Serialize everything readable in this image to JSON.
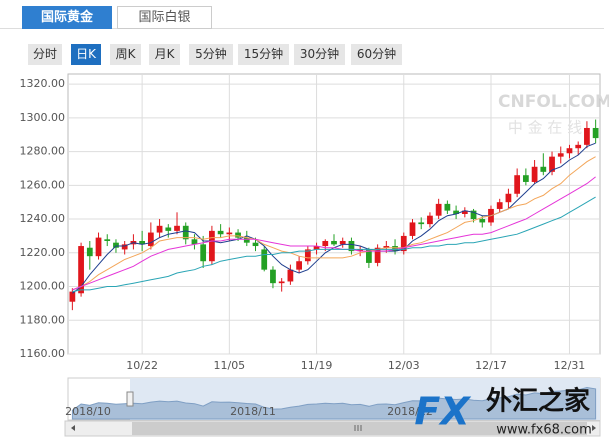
{
  "chart_data": {
    "type": "candlestick",
    "tabs": [
      "国际黄金",
      "国际白银"
    ],
    "active_tab": 0,
    "periods": [
      "分时",
      "日K",
      "周K",
      "月K",
      "5分钟",
      "15分钟",
      "30分钟",
      "60分钟"
    ],
    "active_period": 1,
    "up_color": "#e0161c",
    "down_color": "#23a024",
    "categories": [
      null,
      null,
      null,
      null,
      null,
      null,
      null,
      null,
      "10/22",
      null,
      null,
      null,
      null,
      null,
      null,
      null,
      null,
      null,
      "11/05",
      null,
      null,
      null,
      null,
      null,
      null,
      null,
      null,
      null,
      "11/19",
      null,
      null,
      null,
      null,
      null,
      null,
      null,
      null,
      null,
      "12/03",
      null,
      null,
      null,
      null,
      null,
      null,
      null,
      null,
      null,
      "12/17",
      null,
      null,
      null,
      null,
      null,
      null,
      null,
      null,
      "12/31",
      null,
      null,
      null
    ],
    "ohlc": [
      [
        1191,
        1199,
        1186,
        1197
      ],
      [
        1196,
        1226,
        1194,
        1224
      ],
      [
        1223,
        1227,
        1210,
        1218
      ],
      [
        1218,
        1232,
        1216,
        1229
      ],
      [
        1228,
        1231,
        1224,
        1227
      ],
      [
        1226,
        1228,
        1220,
        1223
      ],
      [
        1222,
        1227,
        1219,
        1225
      ],
      [
        1225,
        1231,
        1222,
        1227
      ],
      [
        1227,
        1233,
        1221,
        1225
      ],
      [
        1224,
        1238,
        1222,
        1232
      ],
      [
        1232,
        1240,
        1229,
        1236
      ],
      [
        1235,
        1237,
        1229,
        1233
      ],
      [
        1233,
        1244,
        1231,
        1236
      ],
      [
        1236,
        1238,
        1225,
        1228
      ],
      [
        1228,
        1231,
        1222,
        1225
      ],
      [
        1225,
        1230,
        1211,
        1215
      ],
      [
        1215,
        1236,
        1213,
        1233
      ],
      [
        1233,
        1237,
        1229,
        1231
      ],
      [
        1231,
        1235,
        1227,
        1232
      ],
      [
        1232,
        1234,
        1227,
        1229
      ],
      [
        1229,
        1233,
        1224,
        1226
      ],
      [
        1226,
        1229,
        1221,
        1224
      ],
      [
        1222,
        1224,
        1209,
        1210
      ],
      [
        1210,
        1212,
        1199,
        1202
      ],
      [
        1202,
        1205,
        1197,
        1203
      ],
      [
        1203,
        1213,
        1201,
        1210
      ],
      [
        1210,
        1218,
        1208,
        1215
      ],
      [
        1215,
        1224,
        1213,
        1222
      ],
      [
        1222,
        1226,
        1219,
        1224
      ],
      [
        1224,
        1228,
        1221,
        1227
      ],
      [
        1227,
        1231,
        1224,
        1225
      ],
      [
        1225,
        1229,
        1223,
        1227
      ],
      [
        1227,
        1229,
        1219,
        1221
      ],
      [
        1221,
        1224,
        1218,
        1222
      ],
      [
        1222,
        1223,
        1211,
        1214
      ],
      [
        1214,
        1225,
        1212,
        1223
      ],
      [
        1223,
        1227,
        1220,
        1224
      ],
      [
        1224,
        1228,
        1219,
        1221
      ],
      [
        1221,
        1232,
        1219,
        1230
      ],
      [
        1230,
        1240,
        1228,
        1238
      ],
      [
        1238,
        1241,
        1234,
        1237
      ],
      [
        1237,
        1244,
        1235,
        1242
      ],
      [
        1242,
        1252,
        1240,
        1249
      ],
      [
        1249,
        1251,
        1243,
        1245
      ],
      [
        1245,
        1248,
        1240,
        1243
      ],
      [
        1243,
        1247,
        1241,
        1245
      ],
      [
        1245,
        1246,
        1238,
        1240
      ],
      [
        1240,
        1242,
        1235,
        1238
      ],
      [
        1238,
        1248,
        1236,
        1246
      ],
      [
        1246,
        1252,
        1244,
        1250
      ],
      [
        1250,
        1258,
        1246,
        1255
      ],
      [
        1255,
        1270,
        1253,
        1266
      ],
      [
        1266,
        1270,
        1260,
        1262
      ],
      [
        1262,
        1275,
        1261,
        1271
      ],
      [
        1271,
        1279,
        1266,
        1268
      ],
      [
        1268,
        1280,
        1266,
        1277
      ],
      [
        1277,
        1283,
        1273,
        1279
      ],
      [
        1279,
        1284,
        1276,
        1282
      ],
      [
        1282,
        1286,
        1278,
        1284
      ],
      [
        1284,
        1298,
        1282,
        1294
      ],
      [
        1294,
        1299,
        1285,
        1288
      ]
    ],
    "series": [
      {
        "color": "#1f3f8f",
        "values": [
          1196,
          1200,
          1207,
          1213,
          1219,
          1224,
          1224,
          1226,
          1225,
          1226,
          1229,
          1231,
          1232,
          1233,
          1232,
          1227,
          1227,
          1226,
          1227,
          1228,
          1230,
          1228,
          1224,
          1218,
          1213,
          1210,
          1208,
          1210,
          1215,
          1220,
          1223,
          1225,
          1225,
          1224,
          1222,
          1221,
          1221,
          1221,
          1222,
          1227,
          1230,
          1234,
          1239,
          1242,
          1243,
          1245,
          1244,
          1242,
          1242,
          1244,
          1246,
          1251,
          1256,
          1261,
          1264,
          1269,
          1271,
          1275,
          1278,
          1283,
          1285
        ]
      },
      {
        "color": "#f3a65a",
        "values": [
          1198,
          1200,
          1203,
          1207,
          1210,
          1213,
          1216,
          1218,
          1220,
          1223,
          1227,
          1228,
          1229,
          1229,
          1229,
          1228,
          1229,
          1229,
          1230,
          1230,
          1229,
          1228,
          1225,
          1223,
          1221,
          1220,
          1218,
          1217,
          1217,
          1217,
          1217,
          1217,
          1218,
          1220,
          1221,
          1222,
          1223,
          1223,
          1223,
          1225,
          1226,
          1228,
          1230,
          1232,
          1235,
          1238,
          1239,
          1241,
          1242,
          1244,
          1246,
          1248,
          1249,
          1252,
          1254,
          1258,
          1261,
          1266,
          1270,
          1274,
          1277
        ]
      },
      {
        "color": "#e535d8",
        "values": [
          1198,
          1200,
          1202,
          1204,
          1206,
          1208,
          1210,
          1212,
          1215,
          1218,
          1220,
          1222,
          1223,
          1224,
          1225,
          1226,
          1227,
          1227,
          1228,
          1228,
          1228,
          1228,
          1227,
          1226,
          1225,
          1224,
          1224,
          1224,
          1224,
          1223,
          1223,
          1222,
          1222,
          1221,
          1221,
          1221,
          1221,
          1222,
          1223,
          1224,
          1225,
          1226,
          1227,
          1228,
          1229,
          1230,
          1231,
          1231,
          1232,
          1234,
          1236,
          1238,
          1240,
          1243,
          1246,
          1249,
          1252,
          1255,
          1258,
          1261,
          1265
        ]
      },
      {
        "color": "#2aa5b5",
        "values": [
          1197,
          1198,
          1198,
          1199,
          1200,
          1200,
          1201,
          1202,
          1203,
          1204,
          1205,
          1206,
          1208,
          1209,
          1210,
          1212,
          1213,
          1215,
          1216,
          1217,
          1218,
          1218,
          1219,
          1219,
          1220,
          1220,
          1221,
          1221,
          1222,
          1222,
          1222,
          1222,
          1222,
          1222,
          1222,
          1222,
          1222,
          1222,
          1222,
          1223,
          1223,
          1224,
          1224,
          1225,
          1225,
          1226,
          1226,
          1227,
          1228,
          1229,
          1230,
          1231,
          1233,
          1235,
          1237,
          1239,
          1241,
          1244,
          1247,
          1250,
          1253
        ]
      }
    ],
    "ylim": [
      1160,
      1326
    ],
    "yticks": [
      {
        "value": 1160,
        "label": "1160.00"
      },
      {
        "value": 1180,
        "label": "1180.00"
      },
      {
        "value": 1200,
        "label": "1200.00"
      },
      {
        "value": 1220,
        "label": "1220.00"
      },
      {
        "value": 1240,
        "label": "1240.00"
      },
      {
        "value": 1260,
        "label": "1260.00"
      },
      {
        "value": 1280,
        "label": "1280.00"
      },
      {
        "value": 1300,
        "label": "1300.00"
      },
      {
        "value": 1320,
        "label": "1320.00"
      }
    ],
    "grid": true,
    "navigator_labels": [
      "2018/10",
      "2018/11",
      "2018/12"
    ],
    "watermark": "CNFOL.COM",
    "watermark_sub": "中 金 在 线",
    "logo_fx": "FX",
    "logo_name": "外汇之家",
    "logo_url": "www.fx68.com"
  }
}
